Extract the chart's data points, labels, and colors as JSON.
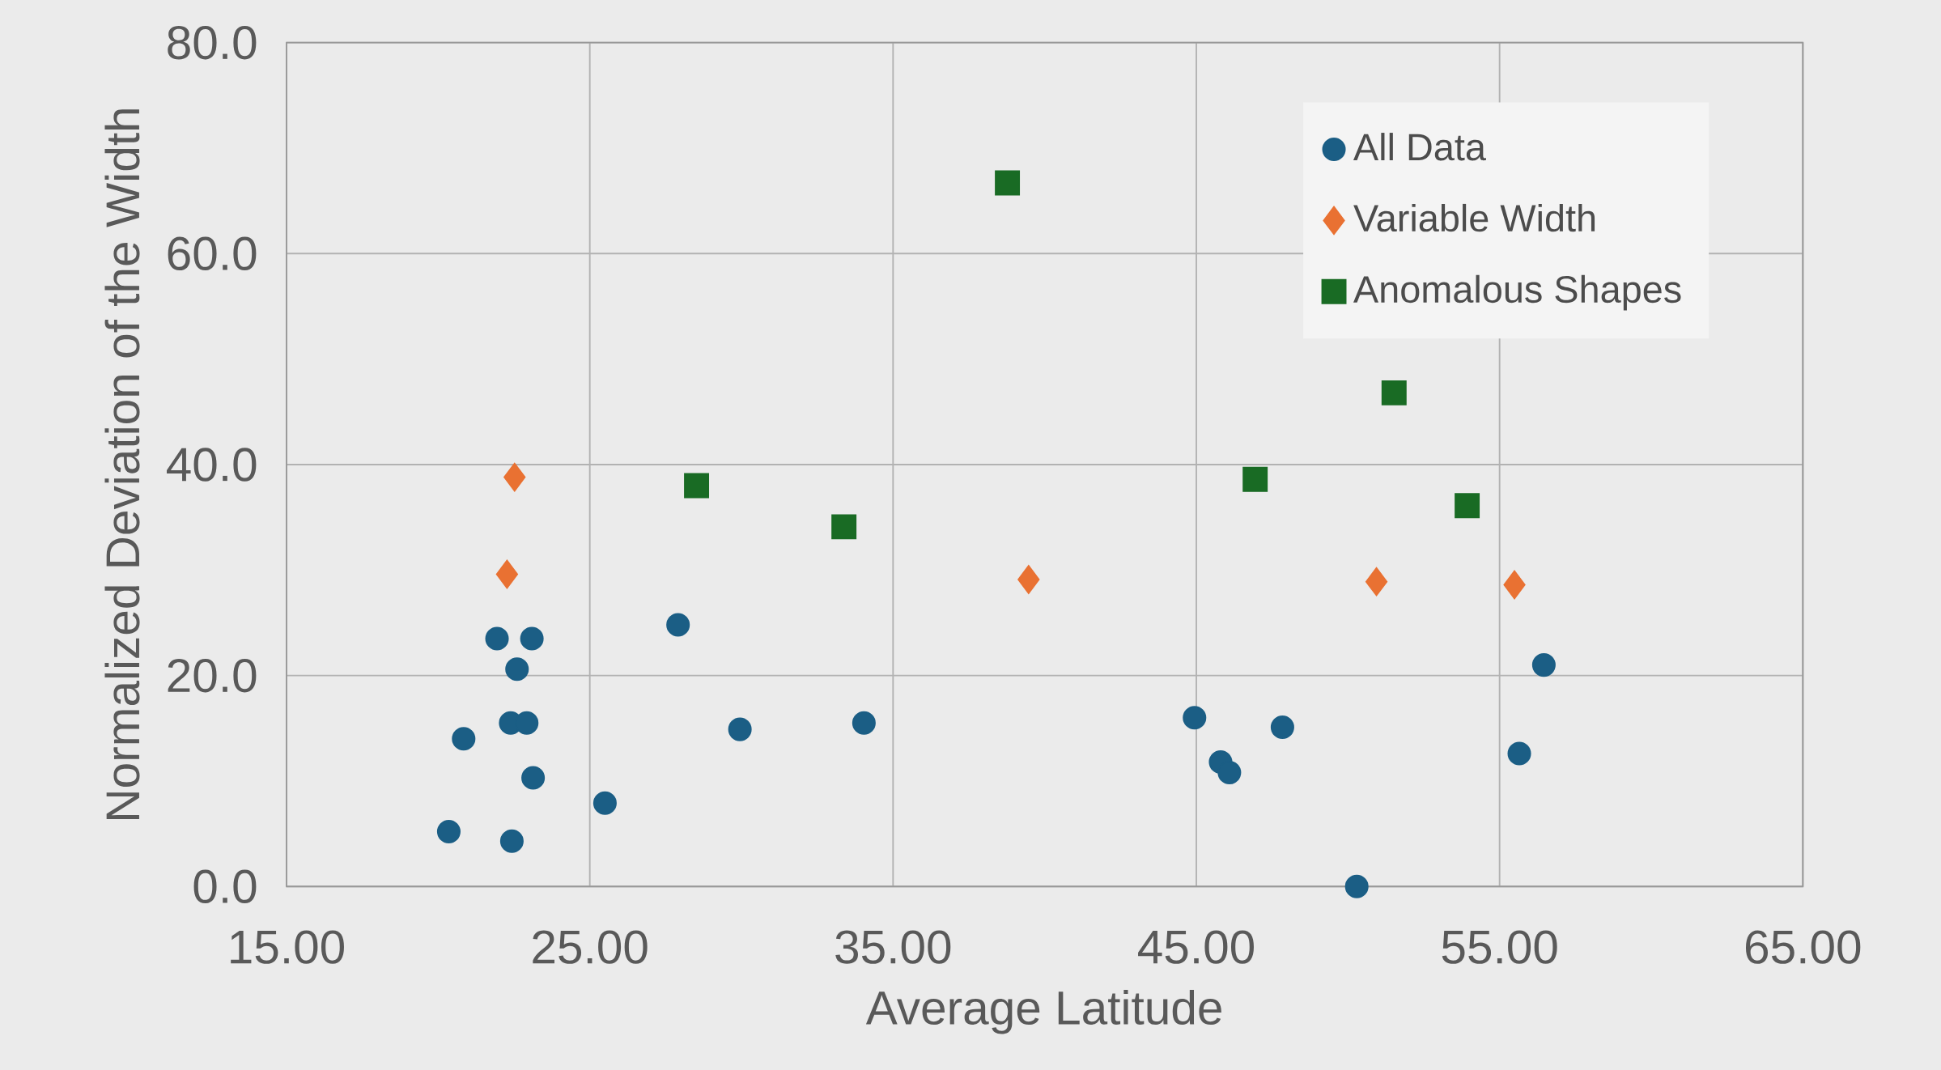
{
  "chart_data": {
    "type": "scatter",
    "xlabel": "Average Latitude",
    "ylabel": "Normalized Deviation of the Width",
    "xlim": [
      15,
      65
    ],
    "ylim": [
      0,
      80
    ],
    "xticks": [
      {
        "value": 15,
        "label": "15.00"
      },
      {
        "value": 25,
        "label": "25.00"
      },
      {
        "value": 35,
        "label": "35.00"
      },
      {
        "value": 45,
        "label": "45.00"
      },
      {
        "value": 55,
        "label": "55.00"
      },
      {
        "value": 65,
        "label": "65.00"
      }
    ],
    "yticks": [
      {
        "value": 0,
        "label": "0.0"
      },
      {
        "value": 20,
        "label": "20.0"
      },
      {
        "value": 40,
        "label": "40.0"
      },
      {
        "value": 60,
        "label": "60.0"
      },
      {
        "value": 80,
        "label": "80.0"
      }
    ],
    "grid": true,
    "legend": "top right",
    "series": [
      {
        "name": "All Data",
        "color": "#1b5e85",
        "marker": "circle",
        "x": [
          20.35,
          20.84,
          21.94,
          23.09,
          22.6,
          22.39,
          22.92,
          23.13,
          22.43,
          25.5,
          27.91,
          29.95,
          34.04,
          44.94,
          45.8,
          46.09,
          47.84,
          50.29,
          55.65,
          56.46
        ],
        "values": [
          5.2,
          14.0,
          23.5,
          23.5,
          20.6,
          15.5,
          15.5,
          10.3,
          4.3,
          7.9,
          24.8,
          14.9,
          15.5,
          16.0,
          11.8,
          10.8,
          15.1,
          0.0,
          12.6,
          21.0
        ]
      },
      {
        "name": "Variable Width",
        "color": "#e97132",
        "marker": "diamond",
        "x": [
          22.52,
          22.27,
          39.47,
          50.94,
          55.49
        ],
        "values": [
          38.8,
          29.6,
          29.1,
          28.9,
          28.6
        ]
      },
      {
        "name": "Anomalous Shapes",
        "color": "#196b24",
        "marker": "square",
        "x": [
          38.77,
          28.52,
          33.38,
          46.94,
          51.52,
          53.93
        ],
        "values": [
          66.7,
          38.0,
          34.1,
          38.6,
          46.8,
          36.1
        ]
      }
    ]
  }
}
